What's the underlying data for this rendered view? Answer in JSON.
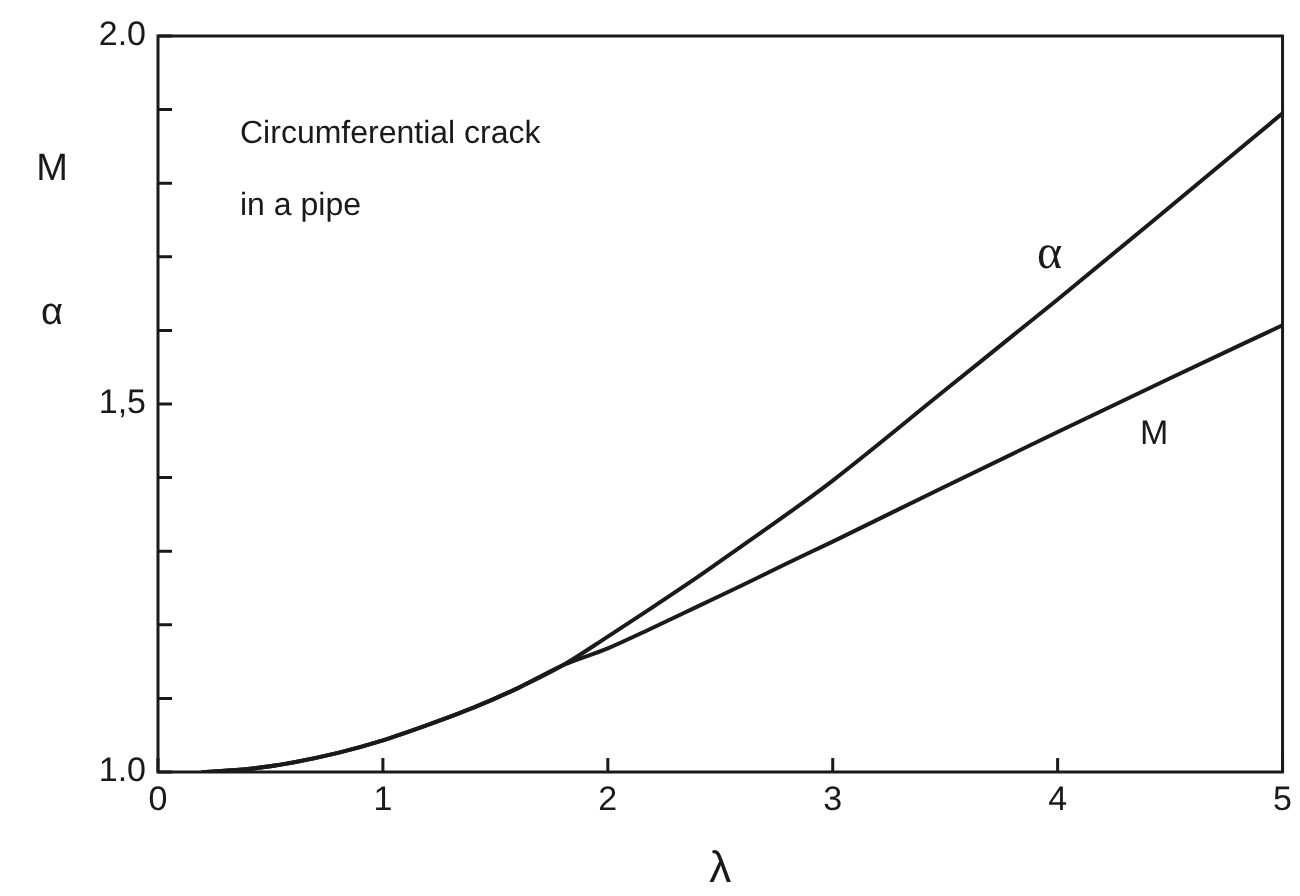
{
  "chart_data": {
    "type": "line",
    "xlabel": "λ",
    "ylabel": "M\nα",
    "annotations": [
      "Circumferential crack\nin a pipe"
    ],
    "xlim": [
      0,
      5
    ],
    "xticks": [
      0,
      1,
      2,
      3,
      4,
      5
    ],
    "ylim": [
      1,
      2
    ],
    "yticks": [
      {
        "value": 1,
        "label": "1.0"
      },
      {
        "value": 1.1,
        "label": null
      },
      {
        "value": 1.2,
        "label": null
      },
      {
        "value": 1.3,
        "label": null
      },
      {
        "value": 1.4,
        "label": null
      },
      {
        "value": 1.5,
        "label": "1,5"
      },
      {
        "value": 1.6,
        "label": null
      },
      {
        "value": 1.7,
        "label": null
      },
      {
        "value": 1.8,
        "label": null
      },
      {
        "value": 1.9,
        "label": null
      },
      {
        "value": 2,
        "label": "2.0"
      }
    ],
    "marker": "none",
    "line_style": "solid",
    "x": [
      0.2,
      0.4,
      0.6,
      0.8,
      1.0,
      1.2,
      1.4,
      1.6,
      1.8,
      2.0,
      2.2,
      2.4,
      2.6,
      2.8,
      3.0,
      3.5,
      4.0,
      4.5,
      5.0
    ],
    "series": [
      {
        "name": "α",
        "color": "#1a1a1a",
        "values": [
          1.0,
          1.004,
          1.013,
          1.026,
          1.043,
          1.064,
          1.087,
          1.114,
          1.145,
          1.184,
          1.224,
          1.265,
          1.308,
          1.351,
          1.396,
          1.519,
          1.642,
          1.768,
          1.895
        ]
      },
      {
        "name": "M",
        "color": "#1a1a1a",
        "values": [
          1.0,
          1.004,
          1.013,
          1.026,
          1.043,
          1.064,
          1.087,
          1.114,
          1.145,
          1.168,
          1.196,
          1.225,
          1.254,
          1.284,
          1.313,
          1.388,
          1.462,
          1.535,
          1.607
        ]
      }
    ]
  }
}
